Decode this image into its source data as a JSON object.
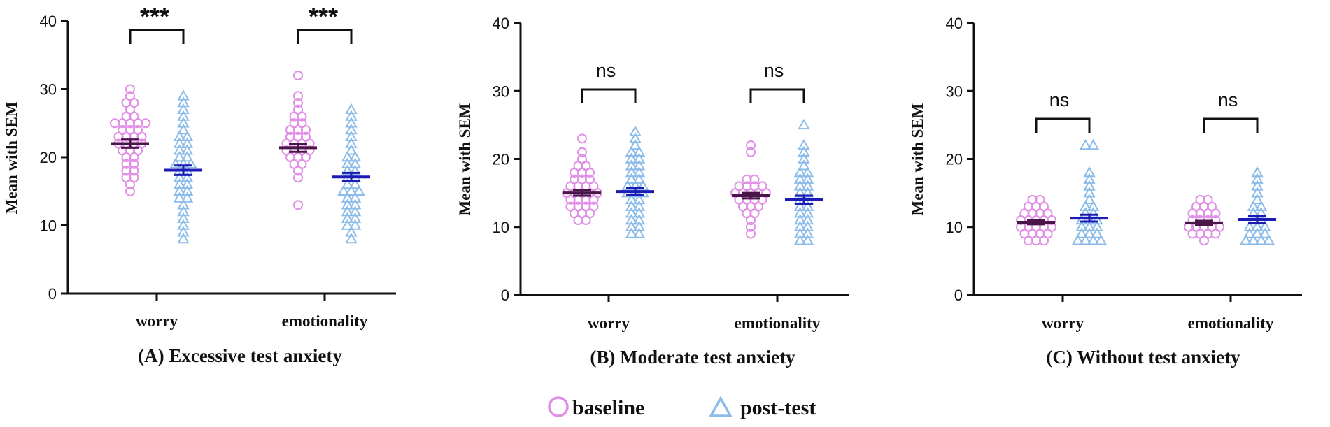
{
  "colors": {
    "baseline": "#e08ee6",
    "post_test": "#8cbce9",
    "baseline_mean": "#4a1548",
    "post_test_mean": "#1c1cb4",
    "axis": "#111111"
  },
  "legend": {
    "baseline": "baseline",
    "post_test": "post-test"
  },
  "chart_data": [
    {
      "type": "scatter",
      "panel": "A",
      "title": "(A) Excessive test anxiety",
      "ylabel": "Mean with SEM",
      "ylim": [
        0,
        40
      ],
      "yticks": [
        0,
        10,
        20,
        30,
        40
      ],
      "categories": [
        "worry",
        "emotionality"
      ],
      "series": [
        {
          "name": "baseline",
          "category": "worry",
          "mean": 22.0,
          "sem": 0.6,
          "values": [
            15,
            16,
            17,
            17,
            18,
            18,
            19,
            19,
            20,
            20,
            21,
            21,
            21,
            22,
            22,
            22,
            22,
            23,
            23,
            23,
            23,
            24,
            24,
            24,
            25,
            25,
            25,
            25,
            25,
            26,
            26,
            27,
            28,
            28,
            29,
            30
          ]
        },
        {
          "name": "post-test",
          "category": "worry",
          "mean": 18.1,
          "sem": 0.7,
          "values": [
            8,
            9,
            10,
            11,
            12,
            13,
            14,
            14,
            15,
            15,
            16,
            16,
            17,
            17,
            18,
            18,
            19,
            19,
            19,
            20,
            20,
            21,
            21,
            22,
            22,
            23,
            23,
            24,
            25,
            26,
            27,
            28,
            29
          ]
        },
        {
          "name": "baseline",
          "category": "emotionality",
          "mean": 21.4,
          "sem": 0.6,
          "values": [
            13,
            17,
            18,
            19,
            19,
            20,
            20,
            20,
            21,
            21,
            21,
            21,
            22,
            22,
            22,
            22,
            23,
            23,
            23,
            24,
            24,
            24,
            25,
            25,
            26,
            26,
            27,
            28,
            29,
            32
          ]
        },
        {
          "name": "post-test",
          "category": "emotionality",
          "mean": 17.1,
          "sem": 0.6,
          "values": [
            8,
            9,
            10,
            10,
            11,
            11,
            12,
            12,
            13,
            13,
            14,
            14,
            15,
            15,
            15,
            16,
            16,
            17,
            17,
            18,
            18,
            19,
            19,
            20,
            20,
            21,
            22,
            23,
            24,
            25,
            26,
            27
          ]
        }
      ],
      "significance": [
        {
          "category": "worry",
          "label": "***"
        },
        {
          "category": "emotionality",
          "label": "***"
        }
      ]
    },
    {
      "type": "scatter",
      "panel": "B",
      "title": "(B) Moderate test anxiety",
      "ylabel": "Mean with SEM",
      "ylim": [
        0,
        40
      ],
      "yticks": [
        0,
        10,
        20,
        30,
        40
      ],
      "categories": [
        "worry",
        "emotionality"
      ],
      "series": [
        {
          "name": "baseline",
          "category": "worry",
          "mean": 15.0,
          "sem": 0.4,
          "values": [
            11,
            11,
            12,
            12,
            12,
            13,
            13,
            13,
            13,
            14,
            14,
            14,
            14,
            15,
            15,
            15,
            15,
            15,
            16,
            16,
            16,
            16,
            17,
            17,
            17,
            18,
            18,
            18,
            19,
            19,
            20,
            21,
            23
          ]
        },
        {
          "name": "post-test",
          "category": "worry",
          "mean": 15.2,
          "sem": 0.5,
          "values": [
            9,
            9,
            10,
            10,
            11,
            11,
            12,
            12,
            13,
            13,
            14,
            14,
            15,
            15,
            15,
            16,
            16,
            16,
            17,
            17,
            18,
            18,
            19,
            19,
            20,
            20,
            21,
            21,
            22,
            23,
            24
          ]
        },
        {
          "name": "baseline",
          "category": "emotionality",
          "mean": 14.6,
          "sem": 0.4,
          "values": [
            9,
            10,
            11,
            12,
            12,
            13,
            13,
            13,
            14,
            14,
            14,
            14,
            15,
            15,
            15,
            15,
            15,
            16,
            16,
            16,
            16,
            17,
            17,
            21,
            22
          ]
        },
        {
          "name": "post-test",
          "category": "emotionality",
          "mean": 14.0,
          "sem": 0.6,
          "values": [
            8,
            8,
            9,
            9,
            10,
            10,
            11,
            11,
            12,
            12,
            13,
            13,
            14,
            14,
            15,
            15,
            16,
            16,
            17,
            17,
            18,
            18,
            19,
            20,
            21,
            22,
            25
          ]
        }
      ],
      "significance": [
        {
          "category": "worry",
          "label": "ns"
        },
        {
          "category": "emotionality",
          "label": "ns"
        }
      ]
    },
    {
      "type": "scatter",
      "panel": "C",
      "title": "(C) Without test anxiety",
      "ylabel": "Mean with SEM",
      "ylim": [
        0,
        40
      ],
      "yticks": [
        0,
        10,
        20,
        30,
        40
      ],
      "categories": [
        "worry",
        "emotionality"
      ],
      "series": [
        {
          "name": "baseline",
          "category": "worry",
          "mean": 10.7,
          "sem": 0.3,
          "values": [
            8,
            8,
            8,
            9,
            9,
            9,
            9,
            10,
            10,
            10,
            10,
            10,
            11,
            11,
            11,
            11,
            11,
            12,
            12,
            12,
            12,
            13,
            13,
            13,
            14,
            14
          ]
        },
        {
          "name": "post-test",
          "category": "worry",
          "mean": 11.3,
          "sem": 0.5,
          "values": [
            8,
            8,
            8,
            8,
            9,
            9,
            9,
            10,
            10,
            10,
            11,
            11,
            11,
            12,
            12,
            13,
            13,
            14,
            15,
            16,
            17,
            18,
            22,
            22
          ]
        },
        {
          "name": "baseline",
          "category": "emotionality",
          "mean": 10.6,
          "sem": 0.3,
          "values": [
            8,
            9,
            9,
            9,
            9,
            10,
            10,
            10,
            10,
            10,
            11,
            11,
            11,
            11,
            12,
            12,
            12,
            12,
            13,
            13,
            13,
            14,
            14
          ]
        },
        {
          "name": "post-test",
          "category": "emotionality",
          "mean": 11.1,
          "sem": 0.5,
          "values": [
            8,
            8,
            8,
            8,
            9,
            9,
            9,
            10,
            10,
            10,
            11,
            11,
            12,
            12,
            13,
            13,
            14,
            15,
            16,
            17,
            18
          ]
        }
      ],
      "significance": [
        {
          "category": "worry",
          "label": "ns"
        },
        {
          "category": "emotionality",
          "label": "ns"
        }
      ]
    }
  ]
}
